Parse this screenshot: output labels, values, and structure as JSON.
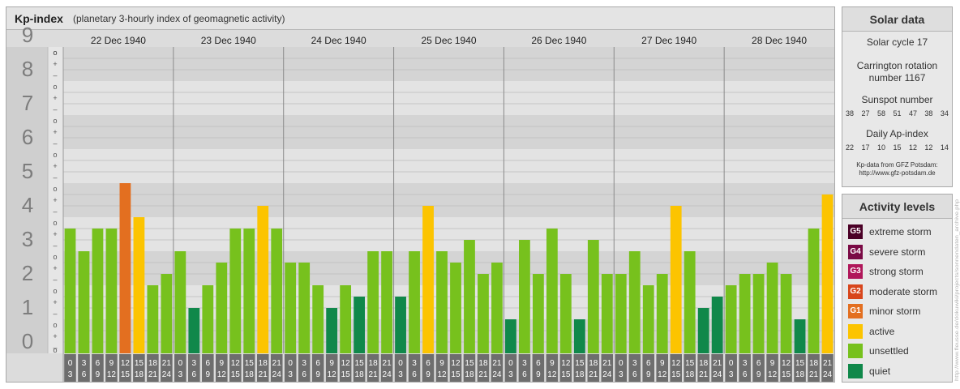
{
  "title": {
    "main": "Kp-index",
    "sub": "(planetary 3-hourly index of geomagnetic activity)"
  },
  "chart_data": {
    "type": "bar",
    "ylim": [
      0,
      9
    ],
    "y_ticks": [
      "0",
      "1",
      "2",
      "3",
      "4",
      "5",
      "6",
      "7",
      "8",
      "9"
    ],
    "sub_ticks": [
      "–",
      "+",
      "o"
    ],
    "days": [
      "22 Dec 1940",
      "23 Dec 1940",
      "24 Dec 1940",
      "25 Dec 1940",
      "26 Dec 1940",
      "27 Dec 1940",
      "28 Dec 1940"
    ],
    "interval_labels": [
      [
        "0",
        "3"
      ],
      [
        "3",
        "6"
      ],
      [
        "6",
        "9"
      ],
      [
        "9",
        "12"
      ],
      [
        "12",
        "15"
      ],
      [
        "15",
        "18"
      ],
      [
        "18",
        "21"
      ],
      [
        "21",
        "24"
      ]
    ],
    "values": [
      [
        3.667,
        3.0,
        3.667,
        3.667,
        5.0,
        4.0,
        2.0,
        2.333
      ],
      [
        3.0,
        1.333,
        2.0,
        2.667,
        3.667,
        3.667,
        4.333,
        3.667
      ],
      [
        2.667,
        2.667,
        2.0,
        1.333,
        2.0,
        1.667,
        3.0,
        3.0
      ],
      [
        1.667,
        3.0,
        4.333,
        3.0,
        2.667,
        3.333,
        2.333,
        2.667
      ],
      [
        1.0,
        3.333,
        2.333,
        3.667,
        2.333,
        1.0,
        3.333,
        2.333
      ],
      [
        2.333,
        3.0,
        2.0,
        2.333,
        4.333,
        3.0,
        1.333,
        1.667
      ],
      [
        2.0,
        2.333,
        2.333,
        2.667,
        2.333,
        1.0,
        3.667,
        4.667
      ]
    ]
  },
  "colors": {
    "g5": "#4a0026",
    "g4": "#7a0a45",
    "g3": "#b0175a",
    "g2": "#d8461c",
    "g1": "#e36f20",
    "active": "#fcc400",
    "unsettled": "#77c11d",
    "quiet": "#10884a"
  },
  "solar": {
    "title": "Solar data",
    "cycle": "Solar cycle 17",
    "carrington_line1": "Carrington rotation",
    "carrington_line2": "number 1167",
    "sunspot_title": "Sunspot number",
    "sunspots": [
      "38",
      "27",
      "58",
      "51",
      "47",
      "38",
      "34"
    ],
    "ap_title": "Daily Ap-index",
    "ap": [
      "22",
      "17",
      "10",
      "15",
      "12",
      "12",
      "14"
    ],
    "source_line1": "Kp-data from GFZ Potsdam:",
    "source_line2": "http://www.gfz-potsdam.de"
  },
  "activity": {
    "title": "Activity levels",
    "levels": [
      {
        "badge": "G5",
        "label": "extreme storm"
      },
      {
        "badge": "G4",
        "label": "severe storm"
      },
      {
        "badge": "G3",
        "label": "strong storm"
      },
      {
        "badge": "G2",
        "label": "moderate storm"
      },
      {
        "badge": "G1",
        "label": "minor storm"
      },
      {
        "badge": "",
        "label": "active"
      },
      {
        "badge": "",
        "label": "unsettled"
      },
      {
        "badge": "",
        "label": "quiet"
      }
    ]
  },
  "watermark": "http://www.fleusse.de/dokuwiki/projects/sonnendaten_archive.php"
}
